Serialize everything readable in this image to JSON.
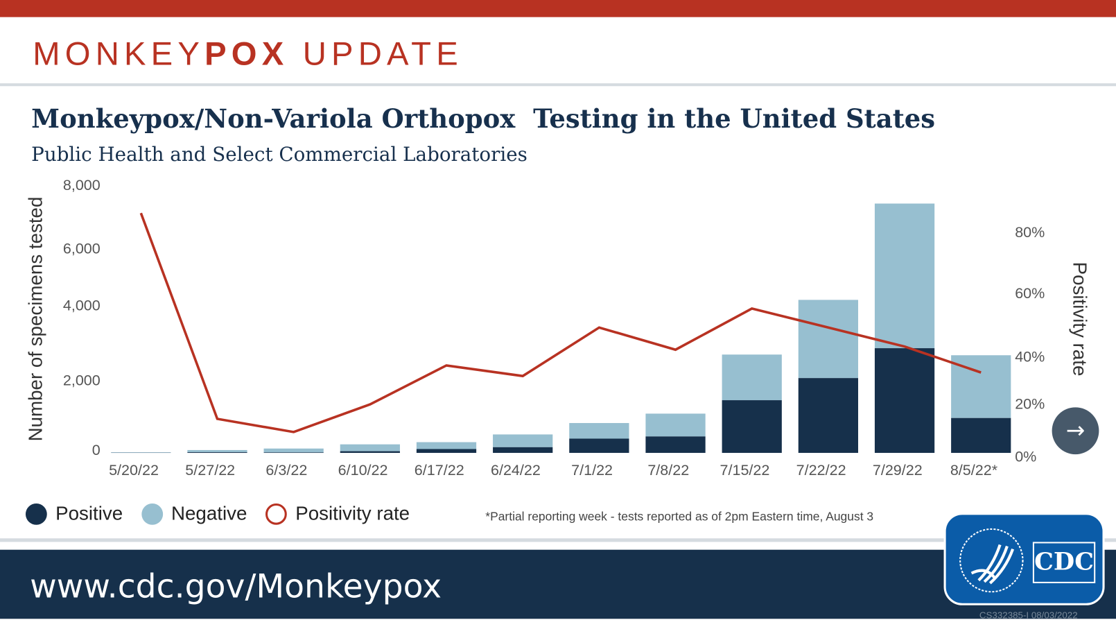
{
  "header": {
    "brand_light": "MONKEY",
    "brand_bold": "POX",
    "brand_rest": " UPDATE"
  },
  "chart_data": {
    "type": "bar+line",
    "title": "Monkeypox/Non-Variola Orthopox  Testing in the United States",
    "subtitle": "Public Health and Select Commercial Laboratories",
    "ylabel": "Number of specimens tested",
    "y2label": "Positivity rate",
    "ylim": [
      0,
      8000
    ],
    "y2lim": [
      0,
      80
    ],
    "yticks": [
      "8,000",
      "6,000",
      "4,000",
      "2,000",
      "0"
    ],
    "y2ticks": [
      "80%",
      "60%",
      "40%",
      "20%",
      "0%"
    ],
    "categories": [
      "5/20/22",
      "5/27/22",
      "6/3/22",
      "6/10/22",
      "6/17/22",
      "6/24/22",
      "7/1/22",
      "7/8/22",
      "7/15/22",
      "7/22/22",
      "7/29/22",
      "8/5/22*"
    ],
    "series": [
      {
        "name": "Positive",
        "kind": "bar-stacked",
        "color": "#16304b",
        "values": [
          5,
          20,
          15,
          50,
          115,
          170,
          425,
          490,
          1570,
          2230,
          3120,
          1040
        ]
      },
      {
        "name": "Negative",
        "kind": "bar-stacked",
        "color": "#97bfd0",
        "values": [
          15,
          65,
          115,
          205,
          205,
          380,
          465,
          680,
          1360,
          2330,
          4310,
          1870
        ]
      },
      {
        "name": "Positivity rate",
        "kind": "line",
        "axis": "right",
        "color": "#b83222",
        "values": [
          86,
          14,
          9,
          19.5,
          36,
          31.5,
          49,
          42,
          55,
          49,
          43,
          33
        ]
      }
    ],
    "grid": false,
    "legend_placement": "bottom-left",
    "footnote": "*Partial reporting week - tests reported as of 2pm Eastern time, August 3"
  },
  "footer": {
    "url": "www.cdc.gov/Monkeypox",
    "logo_text": "CDC",
    "code": "CS332385-I  08/03/2022"
  },
  "controls": {
    "next_icon": "→"
  }
}
